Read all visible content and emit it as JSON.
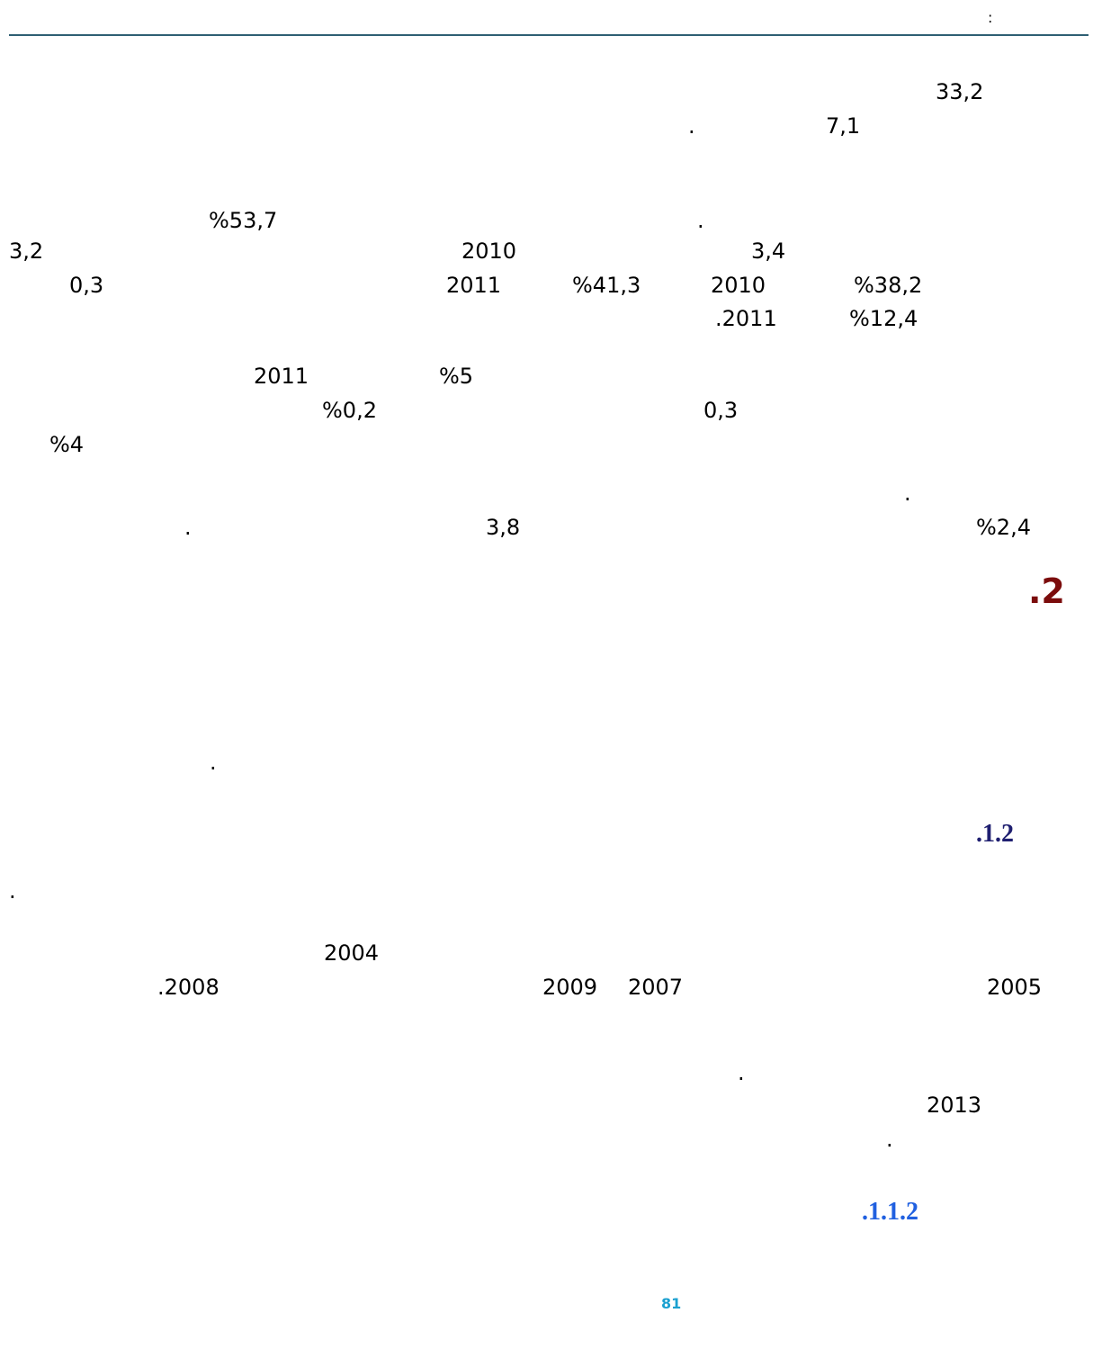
{
  "header": {
    "text": ":"
  },
  "paragraphs": [
    [
      "33,2",
      "7,1",
      "."
    ],
    [
      ".",
      "%53,7",
      "3,4",
      "2010",
      "3,2",
      "%38,2",
      "2010",
      "%41,3",
      "2011",
      "0,3",
      "%12,4",
      ".2011"
    ],
    [
      "%5",
      "2011",
      "0,3",
      "%0,2",
      "%4",
      "."
    ],
    [
      "%2,4",
      "3,8",
      "."
    ]
  ],
  "heading_2": ".2",
  "paragraph_2": [
    "."
  ],
  "heading_2_1": ".1.2",
  "paragraphs_2_1": [
    [
      "."
    ],
    [
      "2004",
      "2005",
      "2007",
      "2009",
      ".2008"
    ],
    [
      ".",
      "2013",
      "."
    ]
  ],
  "heading_2_1_1": ".1.1.2",
  "page_number": "81"
}
